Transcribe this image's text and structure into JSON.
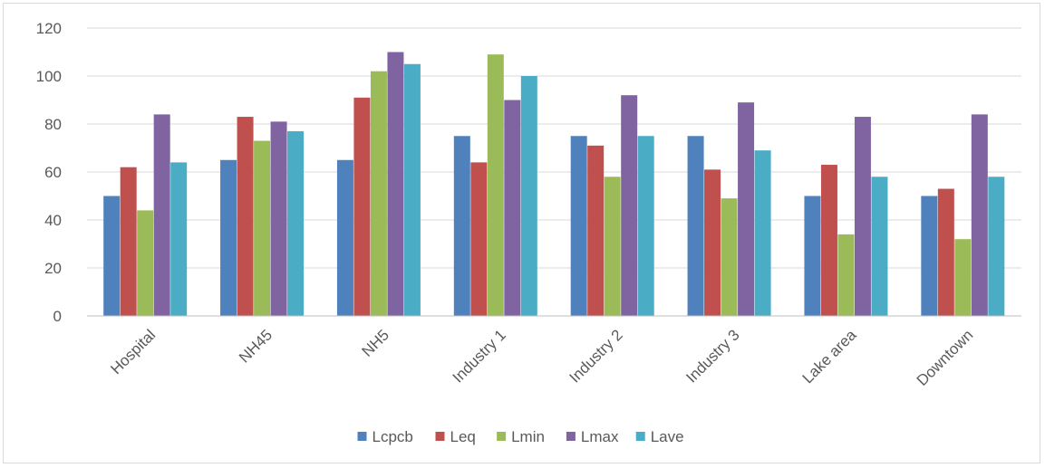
{
  "chart_data": {
    "type": "bar",
    "categories": [
      "Hospital",
      "NH45",
      "NH5",
      "Industry 1",
      "Industry 2",
      "Industry 3",
      "Lake area",
      "Downtown"
    ],
    "series": [
      {
        "name": "Lcpcb",
        "color": "#4f81bd",
        "values": [
          50,
          65,
          65,
          75,
          75,
          75,
          50,
          50
        ]
      },
      {
        "name": "Leq",
        "color": "#c0504d",
        "values": [
          62,
          83,
          91,
          64,
          71,
          61,
          63,
          53
        ]
      },
      {
        "name": "Lmin",
        "color": "#9bbb59",
        "values": [
          44,
          73,
          102,
          109,
          58,
          49,
          34,
          32
        ]
      },
      {
        "name": "Lmax",
        "color": "#8064a2",
        "values": [
          84,
          81,
          110,
          90,
          92,
          89,
          83,
          84
        ]
      },
      {
        "name": "Lave",
        "color": "#4bacc6",
        "values": [
          64,
          77,
          105,
          100,
          75,
          69,
          58,
          58
        ]
      }
    ],
    "y_ticks": [
      "0",
      "20",
      "40",
      "60",
      "80",
      "100",
      "120"
    ],
    "ylim": [
      0,
      120
    ],
    "title": "",
    "xlabel": "",
    "ylabel": "",
    "grid": true,
    "legend_position": "bottom-center",
    "colors": {
      "gridline": "#d9d9d9",
      "axis": "#bfbfbf",
      "text": "#595959"
    }
  }
}
